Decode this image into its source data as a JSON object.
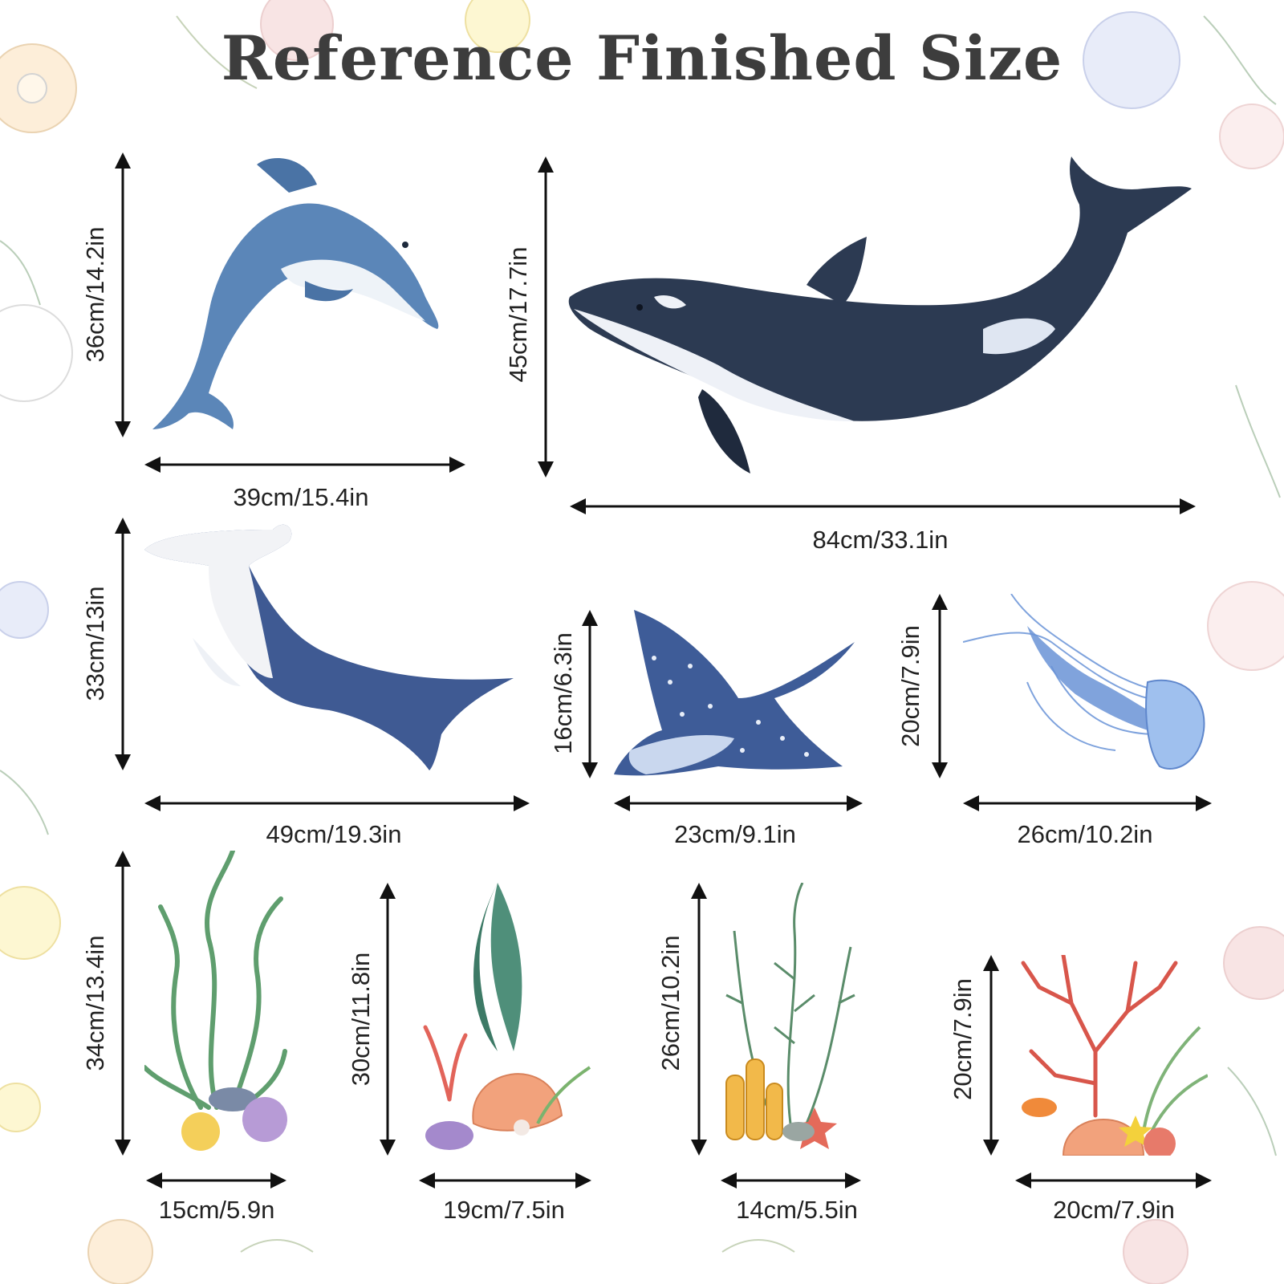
{
  "header": {
    "title": "Reference Finished Size"
  },
  "colors": {
    "text": "#222222",
    "title": "#3d3d3d",
    "dolphin": "#5b86b8",
    "orca": "#2c3a52",
    "shark": "#3f5a93",
    "ray": "#3e5c98",
    "jellyfish": "#6a93d6"
  },
  "items": [
    {
      "name": "dolphin",
      "height": "36cm/14.2in",
      "width": "39cm/15.4in"
    },
    {
      "name": "orca",
      "height": "45cm/17.7in",
      "width": "84cm/33.1in"
    },
    {
      "name": "hammerhead-shark",
      "height": "33cm/13in",
      "width": "49cm/19.3in"
    },
    {
      "name": "manta-ray",
      "height": "16cm/6.3in",
      "width": "23cm/9.1in"
    },
    {
      "name": "jellyfish",
      "height": "20cm/7.9in",
      "width": "26cm/10.2in"
    },
    {
      "name": "seaweed",
      "height": "34cm/13.4in",
      "width": "15cm/5.9n"
    },
    {
      "name": "shell-coral",
      "height": "30cm/11.8in",
      "width": "19cm/7.5in"
    },
    {
      "name": "sea-plants",
      "height": "26cm/10.2in",
      "width": "14cm/5.5in"
    },
    {
      "name": "coral-reef",
      "height": "20cm/7.9in",
      "width": "20cm/7.9in"
    }
  ]
}
